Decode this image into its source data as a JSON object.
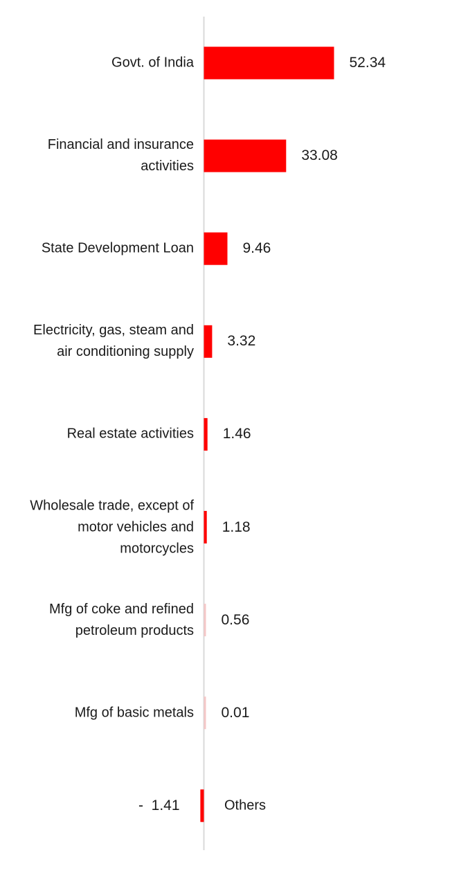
{
  "colors": {
    "bar": "#ff0000",
    "bar_faint": "#f4c7c7",
    "axis": "#d9d9d9"
  },
  "chart_data": {
    "type": "bar",
    "orientation": "horizontal",
    "title": "",
    "xlabel": "",
    "ylabel": "",
    "grid": false,
    "xlim": [
      -1.41,
      52.34
    ],
    "categories": [
      "Govt. of India",
      "Financial and insurance activities",
      "State Development Loan",
      "Electricity, gas, steam and air conditioning supply",
      "Real estate activities",
      "Wholesale trade, except of motor vehicles and motorcycles",
      "Mfg of coke and refined petroleum products",
      "Mfg of basic metals",
      "Others"
    ],
    "category_lines": [
      [
        "Govt. of India"
      ],
      [
        "Financial and insurance",
        "activities"
      ],
      [
        "State Development Loan"
      ],
      [
        "Electricity, gas, steam and",
        "air conditioning supply"
      ],
      [
        "Real estate activities"
      ],
      [
        "Wholesale trade, except of",
        "motor vehicles and",
        "motorcycles"
      ],
      [
        "Mfg of coke and refined",
        "petroleum products"
      ],
      [
        "Mfg of basic metals"
      ],
      [
        "Others"
      ]
    ],
    "values": [
      52.34,
      33.08,
      9.46,
      3.32,
      1.46,
      1.18,
      0.56,
      0.01,
      -1.41
    ],
    "value_labels": [
      "52.34",
      "33.08",
      "9.46",
      "3.32",
      "1.46",
      "1.18",
      "0.56",
      "0.01",
      "-  1.41"
    ]
  }
}
